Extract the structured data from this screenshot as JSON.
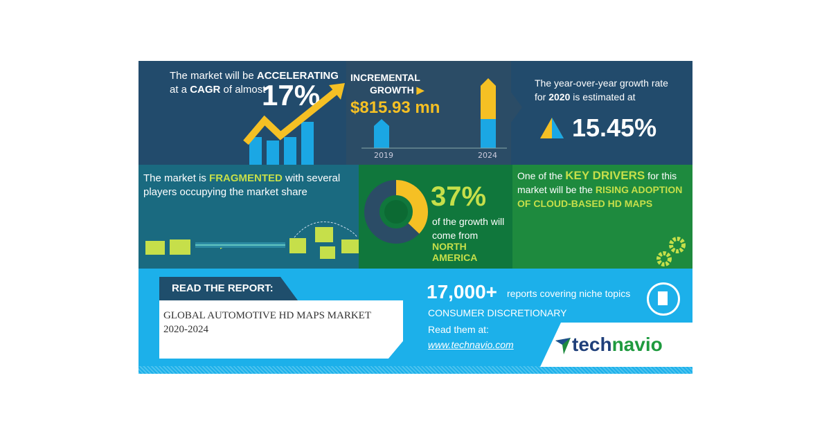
{
  "cagr": {
    "line1_pre": "The market will be ",
    "line1_bold": "ACCELERATING",
    "line2_pre": "at a ",
    "line2_bold": "CAGR",
    "line2_post": " of almost",
    "value": "17%"
  },
  "incremental": {
    "label1": "INCREMENTAL",
    "label2": "GROWTH",
    "value": "$815.93 mn",
    "year_start": "2019",
    "year_end": "2024"
  },
  "yoy": {
    "line1": "The year-over-year growth rate",
    "line2_pre": "for ",
    "line2_bold": "2020",
    "line2_post": " is estimated at",
    "value": "15.45%"
  },
  "fragmented": {
    "pre": "The market is ",
    "bold": "FRAGMENTED",
    "post": " with several players occupying the market share"
  },
  "region": {
    "value": "37%",
    "line1": "of the growth will",
    "line2": "come from",
    "region": "NORTH AMERICA",
    "share": 0.37
  },
  "drivers": {
    "pre": "One of the ",
    "bold1": "KEY DRIVERS",
    "mid": " for this market will be the ",
    "bold2": "RISING ADOPTION OF CLOUD-BASED HD MAPS"
  },
  "report": {
    "heading": "READ THE REPORT:",
    "title_line1": "GLOBAL AUTOMOTIVE HD MAPS MARKET",
    "title_line2": "2020-2024"
  },
  "promo": {
    "count": "17,000+",
    "count_text": "reports covering niche topics",
    "category": "CONSUMER DISCRETIONARY",
    "read": "Read them at:",
    "url": "www.technavio.com"
  },
  "logo": {
    "text_a": "tech",
    "text_b": "navio"
  },
  "colors": {
    "navy": "#234b6c",
    "yellow": "#f5c024",
    "blue": "#1ba7e4",
    "teal": "#1a6a80",
    "green": "#10773c",
    "lime": "#c6df4a",
    "sky": "#1cb0ea"
  }
}
